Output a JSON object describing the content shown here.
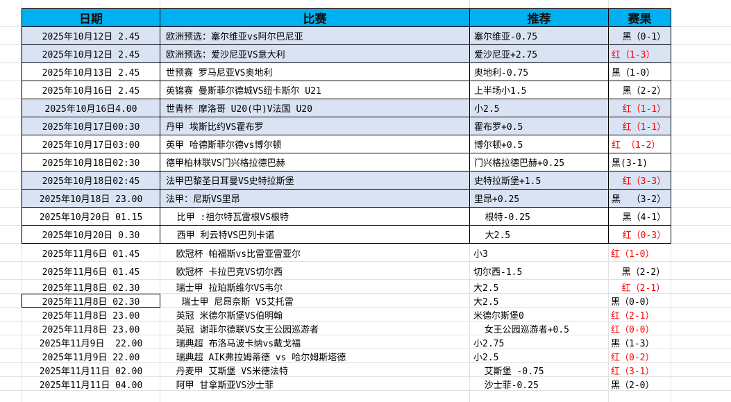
{
  "headers": {
    "date": "日期",
    "match": "比赛",
    "pick": "推荐",
    "result": "赛果"
  },
  "colors": {
    "header": "#00b0f0",
    "band": "#dae3f3",
    "win": "#ff0000",
    "loss": "#000000"
  },
  "rows": [
    {
      "date": "2025年10月12日 2.45",
      "match": "欧洲预选：塞尔维亚vs阿尔巴尼亚",
      "pick": "塞尔维亚-0.75",
      "result": "  黑（0-1）",
      "win": false,
      "band": true
    },
    {
      "date": "2025年10月12日 2.45",
      "match": "欧洲预选：爱沙尼亚VS意大利",
      "pick": "爱沙尼亚+2.75",
      "result": "红（1-3）",
      "win": true,
      "band": true
    },
    {
      "date": "2025年10月13日 2.45",
      "match": "世预赛 罗马尼亚VS奥地利",
      "pick": "奥地利-0.75",
      "result": "黑（1-0）",
      "win": false,
      "band": false
    },
    {
      "date": "2025年10月16日 2.45",
      "match": "英锦赛 曼斯菲尔德城VS纽卡斯尔 U21",
      "pick": "上半场小1.5",
      "result": "  黑（2-2）",
      "win": false,
      "band": false
    },
    {
      "date": "2025年10月16日4.00",
      "match": "世青杯 摩洛哥 U20(中)V法国 U20",
      "pick": "小2.5",
      "result": "  红（1-1）",
      "win": true,
      "band": true
    },
    {
      "date": "2025年10月17日00:30",
      "match": "丹甲 埃斯比约VS霍布罗",
      "pick": "霍布罗+0.5",
      "result": "  红（1-1）",
      "win": true,
      "band": true
    },
    {
      "date": "2025年10月17日03:00",
      "match": "英甲 哈德斯菲尔德vs博尔顿",
      "pick": "博尔顿+0.5",
      "result": "红 （1-2）",
      "win": true,
      "band": false
    },
    {
      "date": "2025年10月18日02:30",
      "match": "德甲柏林联VS门兴格拉德巴赫",
      "pick": "门兴格拉德巴赫+0.25",
      "result": "黑(3-1)",
      "win": false,
      "band": false
    },
    {
      "date": "2025年10月18日02:45",
      "match": "法甲巴黎圣日耳曼VS史特拉斯堡",
      "pick": "史特拉斯堡+1.5",
      "result": "  红（3-3）",
      "win": true,
      "band": true
    },
    {
      "date": "2025年10月18日 23.00",
      "match": "法甲：尼斯VS里昂",
      "pick": "里昂+0.25",
      "result": "黑  （3-2）",
      "win": false,
      "band": true
    },
    {
      "date": "2025年10月20日 01.15",
      "match": "  比甲 :祖尔特瓦雷根VS根特",
      "pick": "  根特-0.25",
      "result": "  黑（4-1）",
      "win": false,
      "band": false
    },
    {
      "date": "2025年10月20日 0.30",
      "match": "  西甲 利云特VS巴列卡诺",
      "pick": "  大2.5",
      "result": "  红（0-3）",
      "win": true,
      "band": false
    },
    {
      "date": "2025年11月6日 01.45",
      "match": "  欧冠杯 帕福斯vs比雷亚雷亚尔",
      "pick": "小3",
      "result": "红（1-0）",
      "win": true
    },
    {
      "date": "2025年11月6日 01.45",
      "match": "  欧冠杯 卡拉巴克VS切尔西",
      "pick": "切尔西-1.5",
      "result": "  黑（2-2）",
      "win": false
    },
    {
      "date": "2025年11月8日 02.30",
      "match": "  瑞士甲 拉珀斯维尔VS韦尔",
      "pick": "大2.5",
      "result": "  红（2-1）",
      "win": true
    },
    {
      "date": "2025年11月8日 02.30",
      "match": "   瑞士甲 尼昂奈斯 VS艾托雷",
      "pick": "大2.5",
      "result": "黑（0-0）",
      "win": false
    },
    {
      "date": "2025年11月8日 23.00",
      "match": "  英冠 米德尔斯堡VS伯明翰",
      "pick": "米德尔斯堡0",
      "result": "红（2-1）",
      "win": true
    },
    {
      "date": "2025年11月8日 23.00",
      "match": "  英冠 谢菲尔德联VS女王公园巡游者",
      "pick": "  女王公园巡游者+0.5",
      "result": "红（0-0）",
      "win": true
    },
    {
      "date": "2025年11月9日  22.00",
      "match": "  瑞典超 布洛马波卡纳vs戴戈福",
      "pick": "小2.75",
      "result": "黑（1-3）",
      "win": false
    },
    {
      "date": "2025年11月9日 22.00",
      "match": "  瑞典超 AIK弗拉姆蒂德 vs 哈尔姆斯塔德",
      "pick": "小2.5",
      "result": "红（0-2）",
      "win": true
    },
    {
      "date": "2025年11月11日 02.00",
      "match": "  丹麦甲 艾斯堡 VS米德法特",
      "pick": "  艾斯堡 -0.75",
      "result": "红（3-1）",
      "win": true
    },
    {
      "date": "2025年11月11日 04.00",
      "match": "  阿甲 甘拿斯亚VS沙士菲",
      "pick": "  沙士菲-0.25",
      "result": "黑（2-0）",
      "win": false
    }
  ]
}
